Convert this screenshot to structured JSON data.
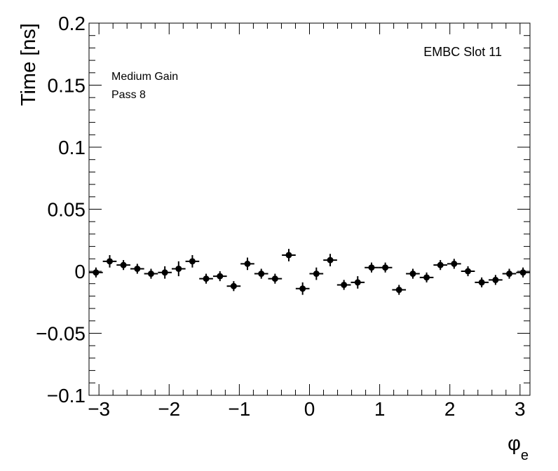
{
  "chart_data": {
    "type": "scatter",
    "xlabel": "φ",
    "xlabel_sub": "e",
    "ylabel": "Time [ns]",
    "xlim": [
      -3.1416,
      3.1416
    ],
    "ylim": [
      -0.1,
      0.2
    ],
    "x_ticks": [
      {
        "value": -3,
        "label": "−3"
      },
      {
        "value": -2,
        "label": "−2"
      },
      {
        "value": -1,
        "label": "−1"
      },
      {
        "value": 0,
        "label": "0"
      },
      {
        "value": 1,
        "label": "1"
      },
      {
        "value": 2,
        "label": "2"
      },
      {
        "value": 3,
        "label": "3"
      }
    ],
    "y_ticks": [
      {
        "value": -0.1,
        "label": "−0.1"
      },
      {
        "value": -0.05,
        "label": "−0.05"
      },
      {
        "value": 0,
        "label": "0"
      },
      {
        "value": 0.05,
        "label": "0.05"
      },
      {
        "value": 0.1,
        "label": "0.1"
      },
      {
        "value": 0.15,
        "label": "0.15"
      },
      {
        "value": 0.2,
        "label": "0.2"
      }
    ],
    "annotations": {
      "slot": "EMBC Slot 11",
      "gain": "Medium Gain",
      "pass": "Pass 8"
    },
    "x_half_width": 0.0982,
    "x": [
      -3.043,
      -2.847,
      -2.651,
      -2.454,
      -2.258,
      -2.061,
      -1.865,
      -1.669,
      -1.473,
      -1.276,
      -1.08,
      -0.884,
      -0.687,
      -0.491,
      -0.295,
      -0.098,
      0.098,
      0.295,
      0.491,
      0.687,
      0.884,
      1.08,
      1.276,
      1.473,
      1.669,
      1.865,
      2.061,
      2.258,
      2.454,
      2.651,
      2.847,
      3.043
    ],
    "y": [
      -0.001,
      0.008,
      0.005,
      0.002,
      -0.002,
      -0.001,
      0.002,
      0.008,
      -0.006,
      -0.004,
      -0.012,
      0.006,
      -0.002,
      -0.006,
      0.013,
      -0.014,
      -0.002,
      0.009,
      -0.011,
      -0.009,
      0.003,
      0.003,
      -0.015,
      -0.002,
      -0.005,
      0.005,
      0.006,
      0.0,
      -0.009,
      -0.007,
      -0.002,
      -0.001
    ],
    "y_err": [
      0.004,
      0.005,
      0.004,
      0.004,
      0.004,
      0.005,
      0.006,
      0.005,
      0.004,
      0.004,
      0.004,
      0.005,
      0.004,
      0.004,
      0.005,
      0.005,
      0.005,
      0.005,
      0.004,
      0.005,
      0.004,
      0.004,
      0.004,
      0.004,
      0.004,
      0.004,
      0.004,
      0.004,
      0.004,
      0.004,
      0.004,
      0.004
    ],
    "marker_color": "#000000",
    "grid": false
  }
}
